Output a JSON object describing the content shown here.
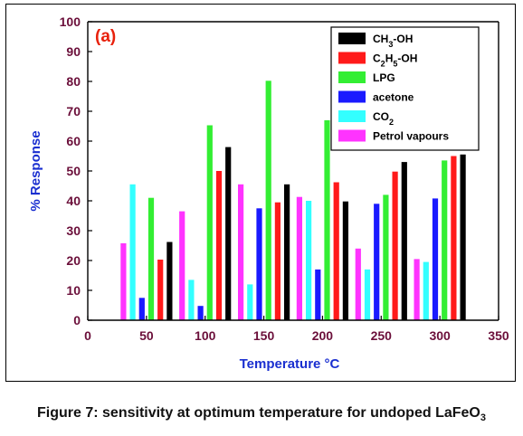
{
  "chart_data": {
    "type": "bar",
    "panel_label": "(a)",
    "xlabel": "Temperature °C",
    "ylabel": "% Response",
    "xlim": [
      0,
      350
    ],
    "ylim": [
      0,
      100
    ],
    "xticks": [
      0,
      50,
      100,
      150,
      200,
      250,
      300,
      350
    ],
    "yticks": [
      0,
      10,
      20,
      30,
      40,
      50,
      60,
      70,
      80,
      90,
      100
    ],
    "grid": false,
    "legend_position": "top-right",
    "categories": [
      50,
      100,
      150,
      200,
      250,
      300
    ],
    "series": [
      {
        "name": "Petrol vapours",
        "color": "#ff33ff",
        "values": [
          25.8,
          36.5,
          45.5,
          41.3,
          24.0,
          20.5
        ]
      },
      {
        "name": "CO2",
        "color": "#33ffff",
        "values": [
          45.5,
          13.5,
          12.0,
          40.0,
          17.0,
          19.5
        ]
      },
      {
        "name": "acetone",
        "color": "#1a1aff",
        "values": [
          7.5,
          4.8,
          37.5,
          17.0,
          39.0,
          40.8
        ]
      },
      {
        "name": "LPG",
        "color": "#33ee33",
        "values": [
          41.0,
          65.3,
          80.2,
          67.0,
          42.0,
          53.5
        ]
      },
      {
        "name": "C2H5-OH",
        "color": "#ff1a1a",
        "values": [
          20.3,
          50.0,
          39.5,
          46.2,
          49.8,
          55.0
        ]
      },
      {
        "name": "CH3-OH",
        "color": "#000000",
        "values": [
          26.2,
          58.0,
          45.5,
          39.8,
          53.0,
          55.5
        ]
      }
    ],
    "legend_order": [
      "CH3-OH",
      "C2H5-OH",
      "LPG",
      "acetone",
      "CO2",
      "Petrol vapours"
    ]
  },
  "caption": {
    "text": "Figure 7: sensitivity at optimum temperature for undoped LaFeO",
    "subscript": "3"
  }
}
